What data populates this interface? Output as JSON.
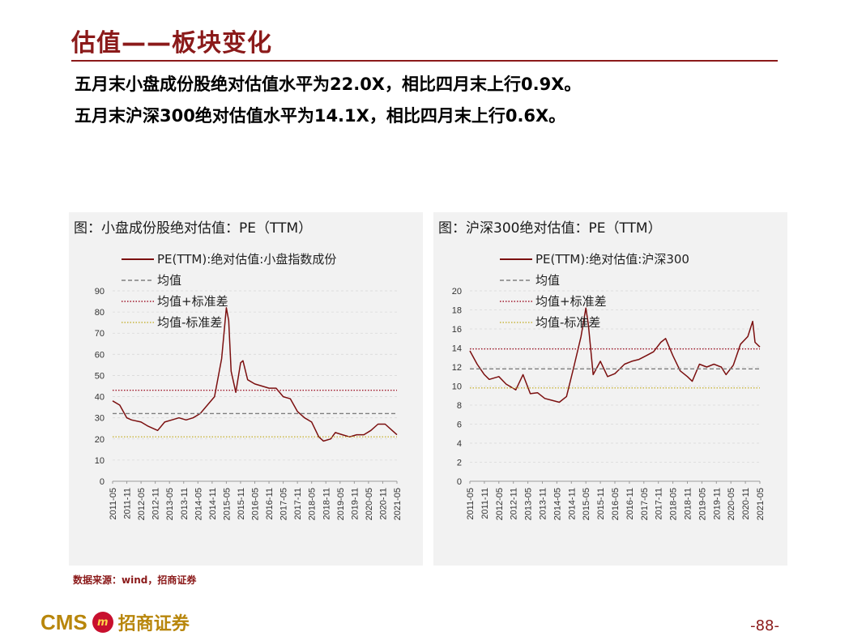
{
  "page_title": "估值——板块变化",
  "bullets": [
    "五月末小盘成份股绝对估值水平为22.0X，相比四月末上行0.9X。",
    "五月末沪深300绝对估值水平为14.1X，相比四月末上行0.6X。"
  ],
  "source": "数据来源：wind，招商证券",
  "logo": {
    "latin": "CMS",
    "badge": "m",
    "cn": "招商证券"
  },
  "page_number": "-88-",
  "colors": {
    "brand": "#8b1a1a",
    "series": "#7b0f0f",
    "mean": "#7f7f7f",
    "mean_plus": "#a0182a",
    "mean_minus": "#c8b43c"
  },
  "chart_data": [
    {
      "type": "line",
      "panel_title": "图：小盘成份股绝对估值：PE（TTM）",
      "ylim": [
        0,
        90
      ],
      "yticks": [
        0,
        10,
        20,
        30,
        40,
        50,
        60,
        70,
        80,
        90
      ],
      "xlim": [
        "2011-05",
        "2021-05"
      ],
      "xticks": [
        "2011-05",
        "2011-11",
        "2012-05",
        "2012-11",
        "2013-05",
        "2013-11",
        "2014-05",
        "2014-11",
        "2015-05",
        "2015-11",
        "2016-05",
        "2016-11",
        "2017-05",
        "2017-11",
        "2018-05",
        "2018-11",
        "2019-05",
        "2019-11",
        "2020-05",
        "2020-11",
        "2021-05"
      ],
      "grid": "horizontal dashed",
      "legend_position": "top",
      "series": [
        {
          "name": "PE(TTM):绝对估值:小盘指数成份",
          "style": "line",
          "x": [
            "2011-05",
            "2011-08",
            "2011-11",
            "2012-01",
            "2012-05",
            "2012-08",
            "2012-12",
            "2013-03",
            "2013-06",
            "2013-09",
            "2013-12",
            "2014-03",
            "2014-06",
            "2014-09",
            "2014-12",
            "2015-03",
            "2015-05",
            "2015-06",
            "2015-07",
            "2015-09",
            "2015-11",
            "2015-12",
            "2016-02",
            "2016-05",
            "2016-08",
            "2016-11",
            "2017-02",
            "2017-05",
            "2017-08",
            "2017-11",
            "2018-02",
            "2018-05",
            "2018-08",
            "2018-10",
            "2019-01",
            "2019-03",
            "2019-06",
            "2019-09",
            "2019-12",
            "2020-03",
            "2020-06",
            "2020-09",
            "2020-12",
            "2021-03",
            "2021-05"
          ],
          "values": [
            38,
            36,
            30,
            29,
            28,
            26,
            24,
            28,
            29,
            30,
            29,
            30,
            32,
            36,
            40,
            58,
            82,
            76,
            52,
            42,
            56,
            57,
            48,
            46,
            45,
            44,
            44,
            40,
            39,
            33,
            30,
            28,
            21,
            19,
            20,
            23,
            22,
            21,
            22,
            22,
            24,
            27,
            27,
            24,
            22
          ]
        },
        {
          "name": "均值",
          "style": "dashed",
          "value": 32
        },
        {
          "name": "均值+标准差",
          "style": "dotted",
          "value": 43
        },
        {
          "name": "均值-标准差",
          "style": "dotted",
          "value": 21
        }
      ]
    },
    {
      "type": "line",
      "panel_title": "图：沪深300绝对估值：PE（TTM）",
      "ylim": [
        0,
        20
      ],
      "yticks": [
        0,
        2,
        4,
        6,
        8,
        10,
        12,
        14,
        16,
        18,
        20
      ],
      "xlim": [
        "2011-05",
        "2021-05"
      ],
      "xticks": [
        "2011-05",
        "2011-11",
        "2012-05",
        "2012-11",
        "2013-05",
        "2013-11",
        "2014-05",
        "2014-11",
        "2015-05",
        "2015-11",
        "2016-05",
        "2016-11",
        "2017-05",
        "2017-11",
        "2018-05",
        "2018-11",
        "2019-05",
        "2019-11",
        "2020-05",
        "2020-11",
        "2021-05"
      ],
      "grid": "horizontal dashed",
      "legend_position": "top",
      "series": [
        {
          "name": "PE(TTM):绝对估值:沪深300",
          "style": "line",
          "x": [
            "2011-05",
            "2011-08",
            "2011-11",
            "2012-01",
            "2012-05",
            "2012-08",
            "2012-12",
            "2013-03",
            "2013-06",
            "2013-09",
            "2013-12",
            "2014-03",
            "2014-06",
            "2014-09",
            "2014-12",
            "2015-03",
            "2015-05",
            "2015-06",
            "2015-08",
            "2015-11",
            "2016-02",
            "2016-05",
            "2016-09",
            "2016-12",
            "2017-03",
            "2017-06",
            "2017-09",
            "2017-12",
            "2018-02",
            "2018-05",
            "2018-08",
            "2018-11",
            "2019-01",
            "2019-04",
            "2019-07",
            "2019-10",
            "2020-01",
            "2020-03",
            "2020-06",
            "2020-09",
            "2020-12",
            "2021-02",
            "2021-03",
            "2021-05"
          ],
          "values": [
            13.7,
            12.3,
            11.2,
            10.7,
            11.0,
            10.2,
            9.6,
            11.2,
            9.2,
            9.3,
            8.7,
            8.5,
            8.3,
            8.9,
            12.0,
            15.2,
            18.2,
            16.5,
            11.2,
            12.6,
            11.0,
            11.3,
            12.3,
            12.6,
            12.8,
            13.2,
            13.6,
            14.6,
            15.0,
            13.2,
            11.6,
            11.0,
            10.5,
            12.3,
            12.0,
            12.3,
            12.0,
            11.2,
            12.2,
            14.4,
            15.2,
            16.8,
            14.6,
            14.1
          ]
        },
        {
          "name": "均值",
          "style": "dashed",
          "value": 11.8
        },
        {
          "name": "均值+标准差",
          "style": "dotted",
          "value": 13.9
        },
        {
          "name": "均值-标准差",
          "style": "dotted",
          "value": 9.8
        }
      ]
    }
  ]
}
